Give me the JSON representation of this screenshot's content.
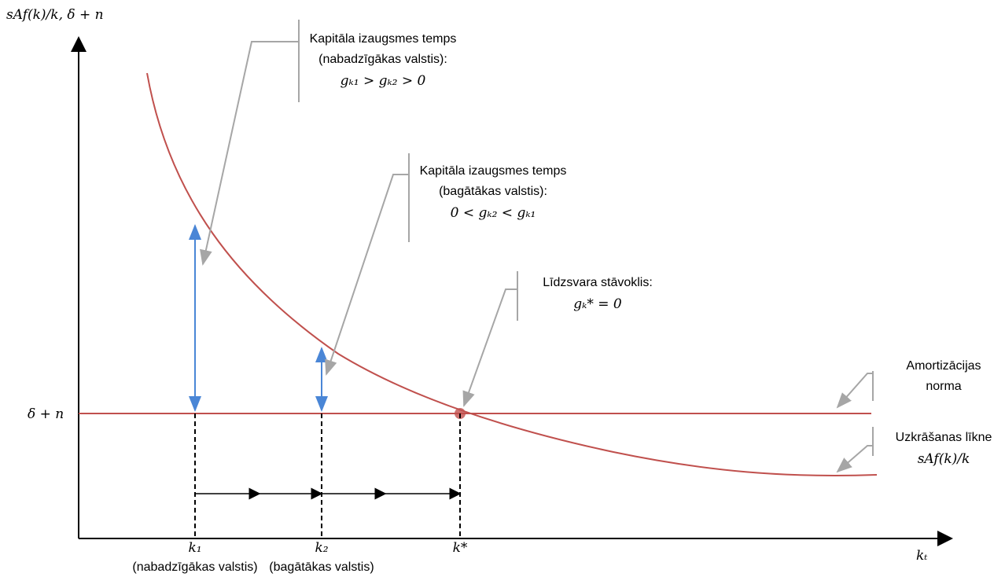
{
  "axes": {
    "y_label": "sAf(k)/k, δ + n",
    "x_label": "kₜ",
    "level_label": "δ + n"
  },
  "ticks": [
    {
      "label": "k₁",
      "note": "(nabadzīgākas valstis)"
    },
    {
      "label": "k₂",
      "note": "(bagātākas valstis)"
    },
    {
      "label": "k*"
    }
  ],
  "callouts": [
    {
      "lines": [
        "Kapitāla izaugsmes temps",
        "(nabadzīgākas valstis):"
      ],
      "formula": "gₖ₁ > gₖ₂ > 0"
    },
    {
      "lines": [
        "Kapitāla izaugsmes temps",
        "(bagātākas valstis):"
      ],
      "formula": "0 < gₖ₂ < gₖ₁"
    },
    {
      "lines": [
        "Līdzsvara stāvoklis:"
      ],
      "formula": "gₖ* = 0"
    },
    {
      "lines": [
        "Amortizācijas",
        "norma"
      ]
    },
    {
      "lines": [
        "Uzkrāšanas līkne"
      ],
      "formula": "sAf(k)/k"
    }
  ]
}
